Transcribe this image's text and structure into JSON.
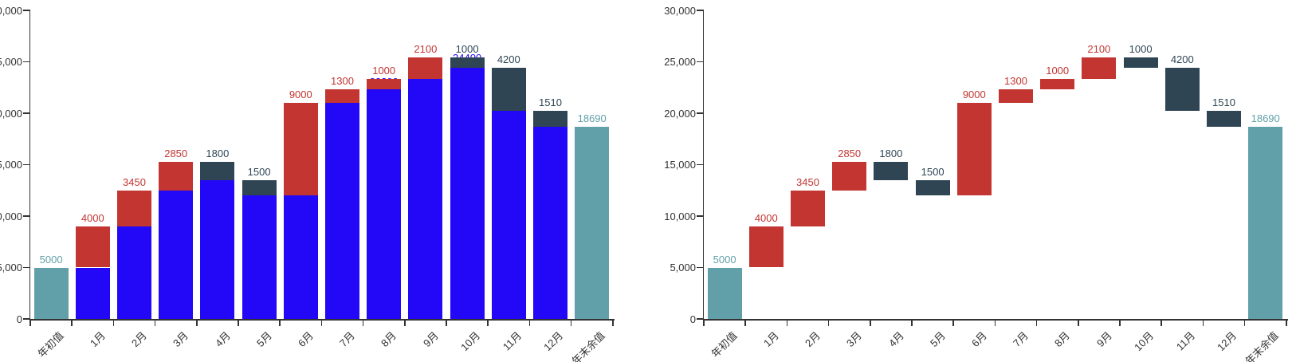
{
  "chart_data": {
    "type": "bar",
    "subtype": "waterfall",
    "title": "",
    "categories": [
      "年初值",
      "1月",
      "2月",
      "3月",
      "4月",
      "5月",
      "6月",
      "7月",
      "8月",
      "9月",
      "10月",
      "11月",
      "12月",
      "年末余值"
    ],
    "steps": [
      {
        "category": "年初值",
        "kind": "total",
        "value": 5000,
        "label": "5000"
      },
      {
        "category": "1月",
        "kind": "increase",
        "value": 4000,
        "label": "4000"
      },
      {
        "category": "2月",
        "kind": "increase",
        "value": 3450,
        "label": "3450"
      },
      {
        "category": "3月",
        "kind": "increase",
        "value": 2850,
        "label": "2850"
      },
      {
        "category": "4月",
        "kind": "decrease",
        "value": 1800,
        "label": "1800"
      },
      {
        "category": "5月",
        "kind": "decrease",
        "value": 1500,
        "label": "1500"
      },
      {
        "category": "6月",
        "kind": "increase",
        "value": 9000,
        "label": "9000"
      },
      {
        "category": "7月",
        "kind": "increase",
        "value": 1300,
        "label": "1300"
      },
      {
        "category": "8月",
        "kind": "increase",
        "value": 1000,
        "label": "1000"
      },
      {
        "category": "9月",
        "kind": "increase",
        "value": 2100,
        "label": "2100"
      },
      {
        "category": "10月",
        "kind": "decrease",
        "value": 1000,
        "label": "1000"
      },
      {
        "category": "11月",
        "kind": "decrease",
        "value": 4200,
        "label": "4200"
      },
      {
        "category": "12月",
        "kind": "decrease",
        "value": 1510,
        "label": "1510"
      },
      {
        "category": "年末余值",
        "kind": "total",
        "value": 18690,
        "label": "18690"
      }
    ],
    "cumulative": [
      5000,
      9000,
      12450,
      15300,
      13500,
      12000,
      21000,
      22300,
      23300,
      25400,
      24400,
      20200,
      18690,
      18690
    ],
    "ylim": [
      0,
      30000
    ],
    "ytick_interval": 5000,
    "ytick_labels": [
      "0",
      "5,000",
      "10,000",
      "15,000",
      "20,000",
      "25,000",
      "30,000"
    ],
    "grid": false,
    "legend": false,
    "colors": {
      "increase": "#c23531",
      "decrease": "#2f4554",
      "total": "#61a0a8",
      "base": "#2307f7",
      "axis_line": "#333333",
      "axis_text": "#333333"
    },
    "charts": [
      {
        "id": "left",
        "variant": "stacked-with-visible-base-bars",
        "base_color": "#2307f7",
        "base_value_labels_visible": [
          {
            "index": 8,
            "category": "8月",
            "text": "22300"
          },
          {
            "index": 10,
            "category": "10月",
            "text": "24400"
          }
        ],
        "y_axis_labels_clipped_at_image_edge": true
      },
      {
        "id": "right",
        "variant": "floating",
        "y_axis_labels_clipped_at_image_edge": false
      }
    ]
  }
}
